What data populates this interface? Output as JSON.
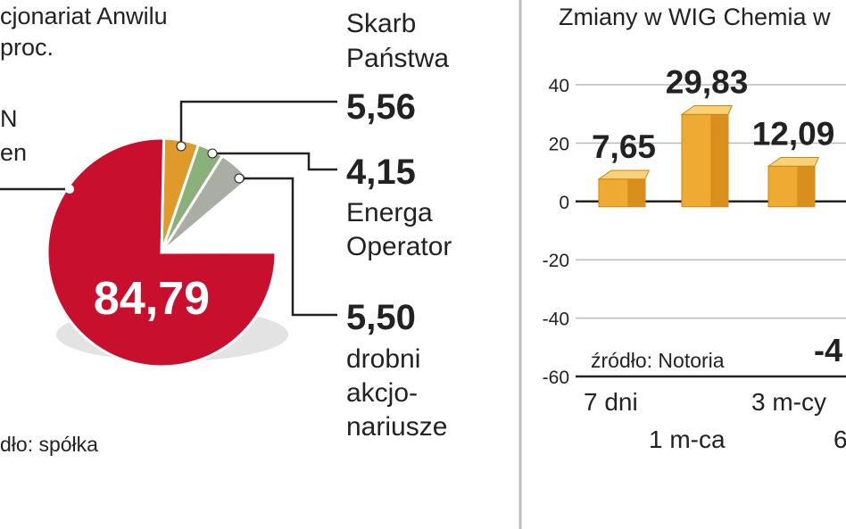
{
  "left_chart": {
    "title_line1": "cjonariat Anwilu",
    "title_line2": "proc.",
    "main_label_line1": "N",
    "main_label_line2": "en",
    "source": "dło: spółka"
  },
  "right_chart": {
    "title": "Zmiany w WIG Chemia w",
    "source": "źródło: Notoria",
    "partial_label": "-4",
    "y_ticks": [
      "40",
      "20",
      "0",
      "-20",
      "-40",
      "-60"
    ],
    "x_row1": [
      "7 dni",
      "3 m-cy"
    ],
    "x_row2": [
      "1 m-ca",
      "6"
    ]
  },
  "chart_data": [
    {
      "type": "pie",
      "title": "",
      "slices": [
        {
          "label": "Skarb Państwa",
          "label_line1": "Skarb",
          "label_line2": "Państwa",
          "value": 5.56,
          "value_text": "5,56",
          "color": "#e09a2a"
        },
        {
          "label": "Energa Operator",
          "label_line1": "Energa",
          "label_line2": "Operator",
          "value": 4.15,
          "value_text": "4,15",
          "color": "#8cb07a"
        },
        {
          "label": "drobni akcjonariusze",
          "label_line1": "drobni",
          "label_line2": "akcjo-",
          "label_line3": "nariusze",
          "value": 5.5,
          "value_text": "5,50",
          "color": "#a9ada4"
        },
        {
          "label": "",
          "value": 84.79,
          "value_text": "84,79",
          "color": "#c8102e"
        }
      ]
    },
    {
      "type": "bar",
      "title": "Zmiany w WIG Chemia w",
      "categories": [
        "7 dni",
        "1 m-ca",
        "3 m-cy"
      ],
      "values": [
        7.65,
        29.83,
        12.09
      ],
      "value_labels": [
        "7,65",
        "29,83",
        "12,09"
      ],
      "ylim": [
        -60,
        40
      ],
      "yticks": [
        40,
        20,
        0,
        -20,
        -40,
        -60
      ],
      "grid": true,
      "color": "#eeaa33"
    }
  ]
}
